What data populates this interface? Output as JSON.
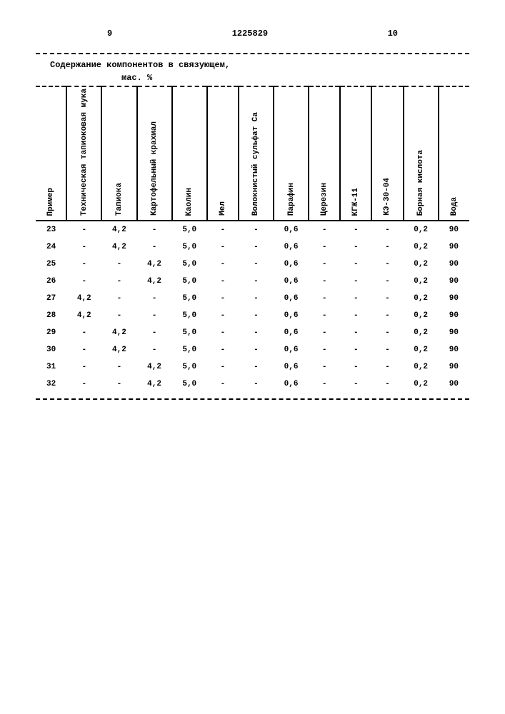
{
  "page_left": "9",
  "page_right": "10",
  "doc_number": "1225829",
  "title": "Содержание компонентов в связующем,",
  "subtitle": "мас. %",
  "columns": [
    "Пример",
    "Техническая тапиоковая мука",
    "Тапиока",
    "Картофельный крахмал",
    "Каолин",
    "Мел",
    "Волокнистый сульфат Ca",
    "Парафин",
    "Церезин",
    "КГЖ-11",
    "КЭ-30-04",
    "Борная кислота",
    "Вода"
  ],
  "rows": [
    [
      "23",
      "-",
      "4,2",
      "-",
      "5,0",
      "-",
      "-",
      "0,6",
      "-",
      "-",
      "-",
      "0,2",
      "90"
    ],
    [
      "24",
      "-",
      "4,2",
      "-",
      "5,0",
      "-",
      "-",
      "0,6",
      "-",
      "-",
      "-",
      "0,2",
      "90"
    ],
    [
      "25",
      "-",
      "-",
      "4,2",
      "5,0",
      "-",
      "-",
      "0,6",
      "-",
      "-",
      "-",
      "0,2",
      "90"
    ],
    [
      "26",
      "-",
      "-",
      "4,2",
      "5,0",
      "-",
      "-",
      "0,6",
      "-",
      "-",
      "-",
      "0,2",
      "90"
    ],
    [
      "27",
      "4,2",
      "-",
      "-",
      "5,0",
      "-",
      "-",
      "0,6",
      "-",
      "-",
      "-",
      "0,2",
      "90"
    ],
    [
      "28",
      "4,2",
      "-",
      "-",
      "5,0",
      "-",
      "-",
      "0,6",
      "-",
      "-",
      "-",
      "0,2",
      "90"
    ],
    [
      "29",
      "-",
      "4,2",
      "-",
      "5,0",
      "-",
      "-",
      "0,6",
      "-",
      "-",
      "-",
      "0,2",
      "90"
    ],
    [
      "30",
      "-",
      "4,2",
      "-",
      "5,0",
      "-",
      "-",
      "0,6",
      "-",
      "-",
      "-",
      "0,2",
      "90"
    ],
    [
      "31",
      "-",
      "-",
      "4,2",
      "5,0",
      "-",
      "-",
      "0,6",
      "-",
      "-",
      "-",
      "0,2",
      "90"
    ],
    [
      "32",
      "-",
      "-",
      "4,2",
      "5,0",
      "-",
      "-",
      "0,6",
      "-",
      "-",
      "-",
      "0,2",
      "90"
    ]
  ]
}
